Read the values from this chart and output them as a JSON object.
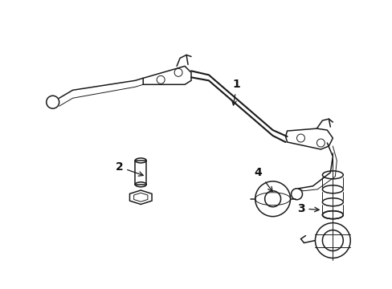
{
  "bg_color": "#ffffff",
  "line_color": "#1a1a1a",
  "label_color": "#111111",
  "figsize": [
    4.89,
    3.6
  ],
  "dpi": 100,
  "lw_main": 1.1,
  "lw_thin": 0.7,
  "lw_bar": 1.5
}
